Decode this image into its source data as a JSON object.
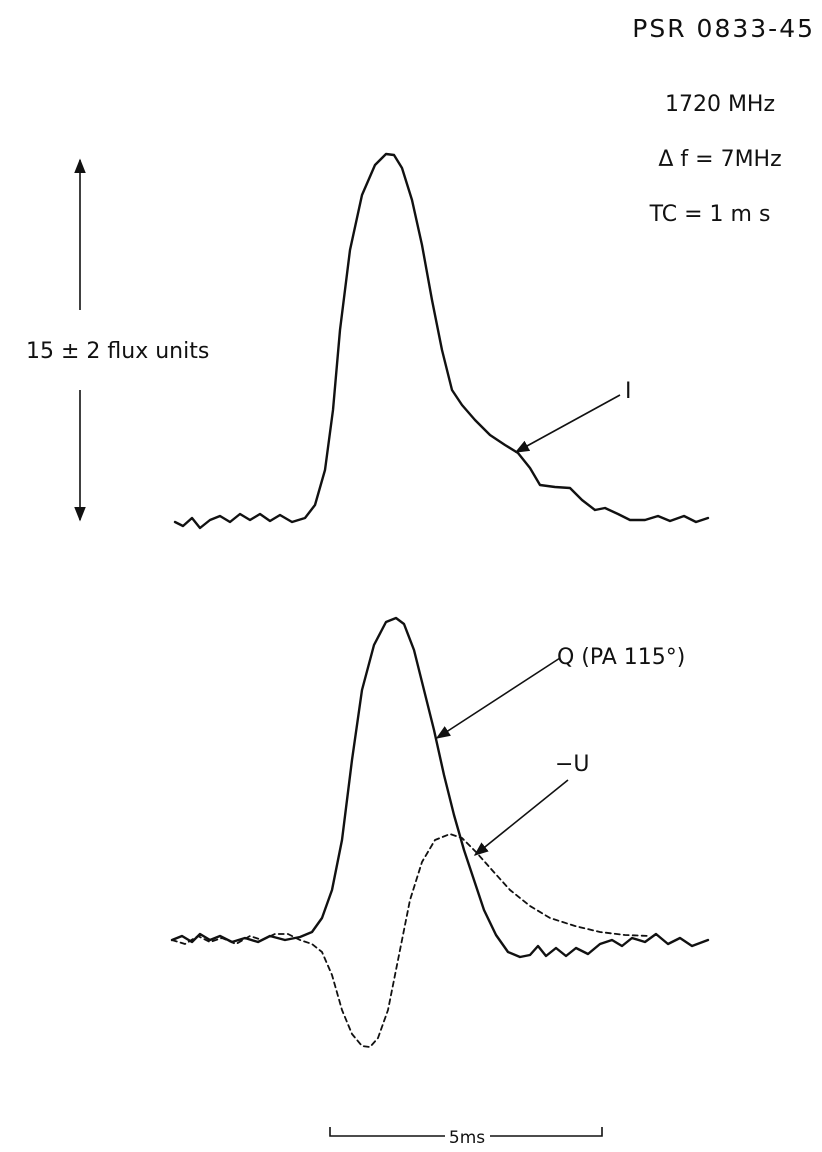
{
  "title": "PSR 0833-45",
  "parameters": [
    "1720 MHz",
    "Δ f = 7MHz",
    "TC = 1 m s"
  ],
  "scale_label": "15 ± 2 flux units",
  "curve_labels": {
    "I": "I",
    "Q": "Q (PA 115°)",
    "U": "−U"
  },
  "time_scale": "5ms"
}
